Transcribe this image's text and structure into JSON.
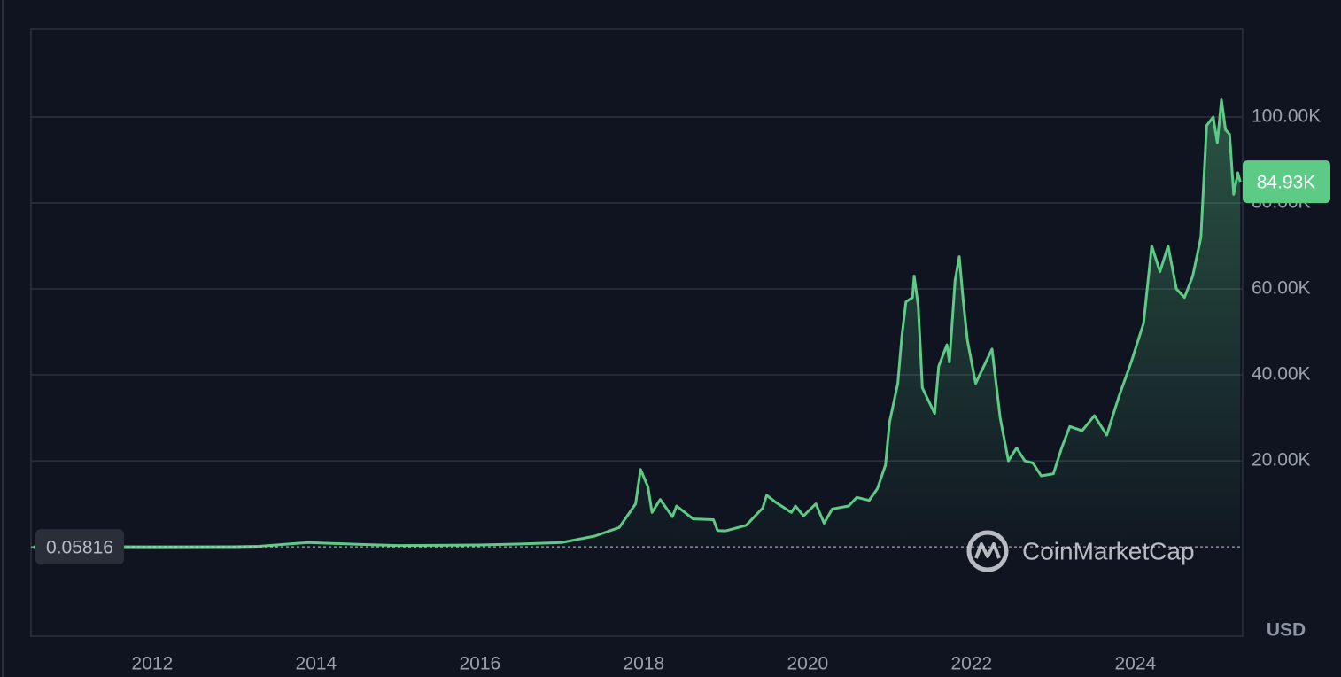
{
  "chart_data": {
    "type": "line",
    "series": [
      {
        "color": "#5dcb86",
        "x": [
          2010.55,
          2011.5,
          2012.0,
          2013.0,
          2013.3,
          2013.9,
          2014.5,
          2015.0,
          2016.0,
          2016.5,
          2017.0,
          2017.4,
          2017.7,
          2017.9,
          2017.96,
          2018.05,
          2018.1,
          2018.2,
          2018.35,
          2018.4,
          2018.6,
          2018.85,
          2018.9,
          2019.0,
          2019.25,
          2019.45,
          2019.5,
          2019.6,
          2019.8,
          2019.85,
          2019.95,
          2020.1,
          2020.2,
          2020.3,
          2020.5,
          2020.6,
          2020.75,
          2020.85,
          2020.95,
          2021.0,
          2021.1,
          2021.15,
          2021.2,
          2021.28,
          2021.3,
          2021.35,
          2021.4,
          2021.5,
          2021.55,
          2021.6,
          2021.7,
          2021.73,
          2021.8,
          2021.85,
          2021.9,
          2021.95,
          2022.05,
          2022.15,
          2022.25,
          2022.35,
          2022.45,
          2022.55,
          2022.65,
          2022.75,
          2022.85,
          2023.0,
          2023.1,
          2023.2,
          2023.35,
          2023.5,
          2023.65,
          2023.8,
          2023.95,
          2024.1,
          2024.2,
          2024.3,
          2024.4,
          2024.5,
          2024.6,
          2024.7,
          2024.8,
          2024.87,
          2024.95,
          2025.0,
          2025.05,
          2025.1,
          2025.15,
          2025.2,
          2025.25,
          2025.28
        ],
        "values": [
          0.05816,
          15,
          5,
          13,
          130,
          1000,
          600,
          300,
          430,
          650,
          1000,
          2500,
          4500,
          10000,
          18000,
          14000,
          8000,
          11000,
          7000,
          9500,
          6500,
          6300,
          3800,
          3700,
          5000,
          9000,
          12000,
          10500,
          8000,
          9500,
          7200,
          10000,
          5500,
          8800,
          9500,
          11500,
          10800,
          13500,
          19000,
          29000,
          38000,
          49000,
          57000,
          58000,
          63000,
          56000,
          37000,
          33000,
          31000,
          42000,
          47000,
          43000,
          62000,
          67500,
          57000,
          48000,
          38000,
          42000,
          46000,
          30000,
          20000,
          23000,
          20000,
          19500,
          16500,
          17000,
          23000,
          28000,
          27000,
          30500,
          26000,
          35000,
          43000,
          52000,
          70000,
          64000,
          70000,
          60000,
          58000,
          63000,
          72000,
          98000,
          100000,
          94000,
          104000,
          97000,
          96000,
          82000,
          87000,
          84930
        ]
      }
    ],
    "xlim": [
      2010.52,
      2025.31
    ],
    "xticks": [
      2012,
      2014,
      2016,
      2018,
      2020,
      2022,
      2024
    ],
    "ylim": [
      -20800,
      120400
    ],
    "yticks": [
      {
        "value": 20000,
        "label": "20.00K"
      },
      {
        "value": 40000,
        "label": "40.00K"
      },
      {
        "value": 60000,
        "label": "60.00K"
      },
      {
        "value": 80000,
        "label": "80.00K"
      },
      {
        "value": 100000,
        "label": "100.00K"
      }
    ],
    "grid": true,
    "start_price": {
      "value": 0.05816,
      "label": "0.05816"
    },
    "last_price": {
      "value": 84930,
      "label": "84.93K"
    },
    "watermark": "CoinMarketCap",
    "currency": "USD"
  }
}
